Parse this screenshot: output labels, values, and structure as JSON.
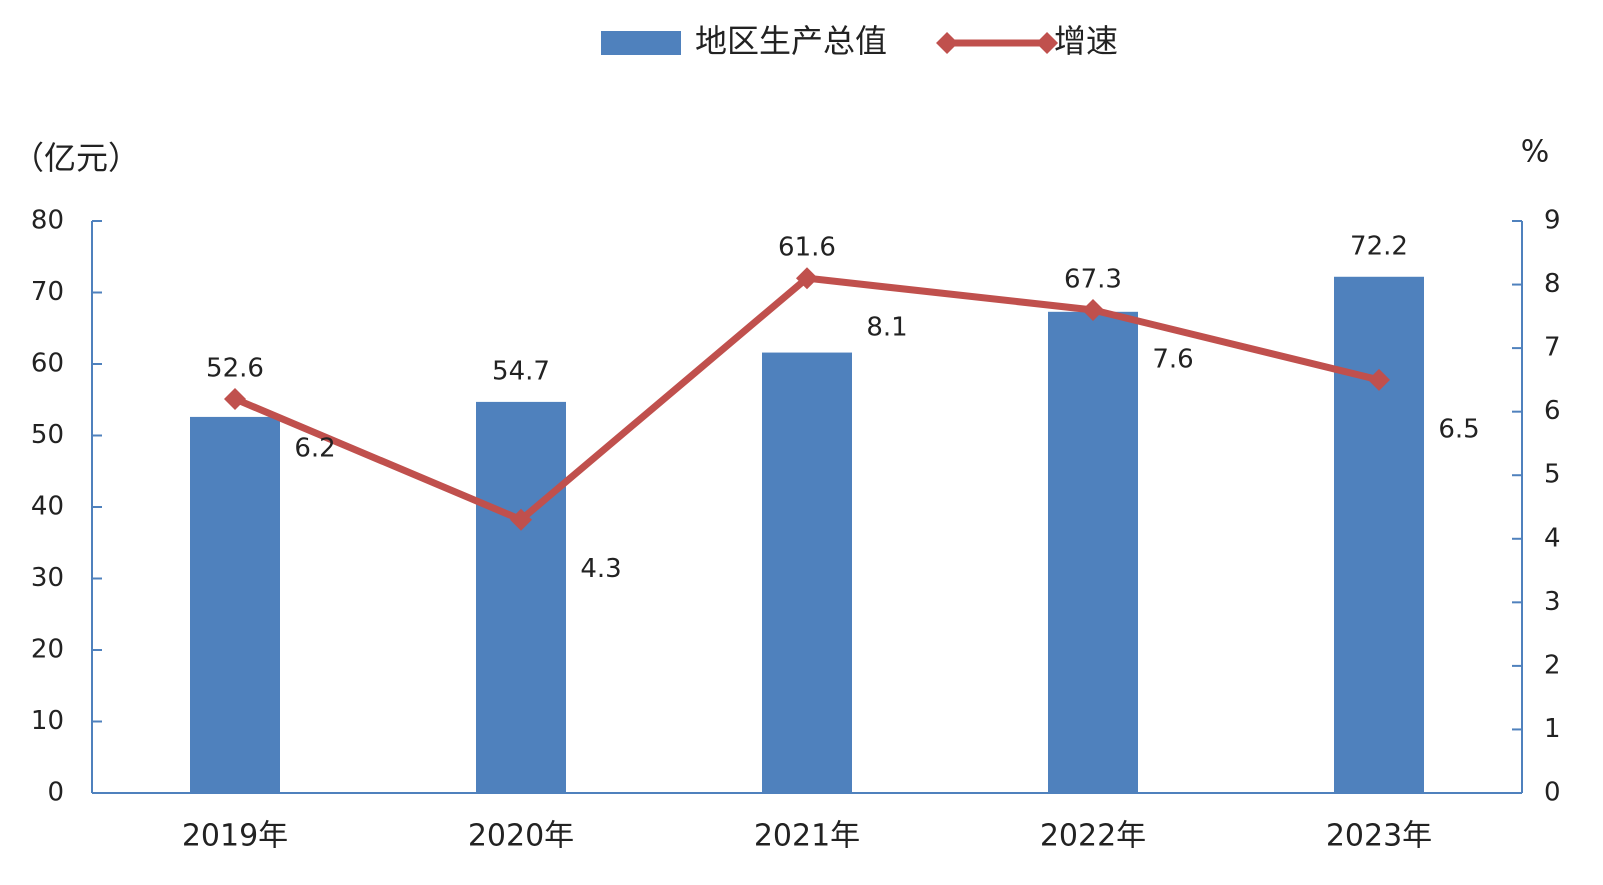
{
  "chart_data": {
    "type": "combo",
    "categories": [
      "2019年",
      "2020年",
      "2021年",
      "2022年",
      "2023年"
    ],
    "series": [
      {
        "name": "地区生产总值",
        "type": "bar",
        "color": "#4f81bd",
        "values": [
          52.6,
          54.7,
          61.6,
          67.3,
          72.2
        ]
      },
      {
        "name": "增速",
        "type": "line",
        "axis": "y2",
        "color": "#c0504d",
        "values": [
          6.2,
          4.3,
          8.1,
          7.6,
          6.5
        ]
      }
    ],
    "y_label": "（亿元）",
    "y2_label": "%",
    "ylim": [
      0,
      80
    ],
    "yticks": [
      0,
      10,
      20,
      30,
      40,
      50,
      60,
      70,
      80
    ],
    "y2lim": [
      0,
      9
    ],
    "y2ticks": [
      0,
      1,
      2,
      3,
      4,
      5,
      6,
      7,
      8,
      9
    ],
    "axis_color": "#4f81bd",
    "legend": "top"
  }
}
